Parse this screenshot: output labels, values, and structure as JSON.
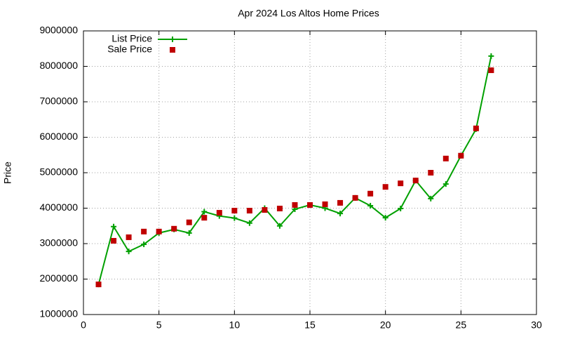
{
  "chart_data": {
    "type": "line",
    "title": "Apr 2024 Los Altos Home Prices",
    "y_label": "Price",
    "x": [
      1,
      2,
      3,
      4,
      5,
      6,
      7,
      8,
      9,
      10,
      11,
      12,
      13,
      14,
      15,
      16,
      17,
      18,
      19,
      20,
      21,
      22,
      23,
      24,
      25,
      26,
      27
    ],
    "series": [
      {
        "name": "List Price",
        "color": "#00a000",
        "style": "linespoints",
        "values": [
          1850000,
          3480000,
          2780000,
          2980000,
          3300000,
          3400000,
          3300000,
          3900000,
          3780000,
          3720000,
          3580000,
          4000000,
          3500000,
          3970000,
          4090000,
          4000000,
          3850000,
          4290000,
          4070000,
          3730000,
          3990000,
          4780000,
          4270000,
          4680000,
          5480000,
          6230000,
          8290000
        ]
      },
      {
        "name": "Sale Price",
        "color": "#c00000",
        "style": "points",
        "values": [
          1850000,
          3080000,
          3180000,
          3340000,
          3340000,
          3420000,
          3600000,
          3730000,
          3870000,
          3930000,
          3930000,
          3950000,
          3990000,
          4090000,
          4090000,
          4110000,
          4150000,
          4290000,
          4410000,
          4600000,
          4700000,
          4780000,
          5000000,
          5400000,
          5480000,
          6250000,
          7890000
        ]
      }
    ],
    "xlim": [
      0,
      30
    ],
    "xticks": [
      0,
      5,
      10,
      15,
      20,
      25,
      30
    ],
    "ylim": [
      1000000,
      9000000
    ],
    "yticks": [
      1000000,
      2000000,
      3000000,
      4000000,
      5000000,
      6000000,
      7000000,
      8000000,
      9000000
    ],
    "grid": true,
    "legend": "top-left"
  }
}
